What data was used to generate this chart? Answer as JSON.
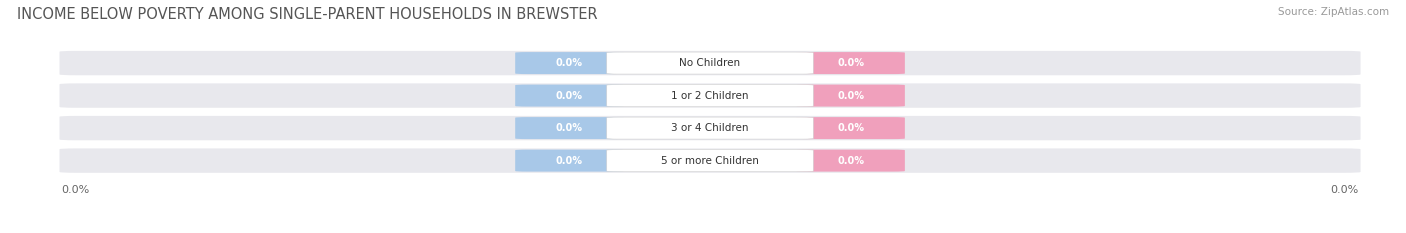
{
  "title": "INCOME BELOW POVERTY AMONG SINGLE-PARENT HOUSEHOLDS IN BREWSTER",
  "source": "Source: ZipAtlas.com",
  "categories": [
    "No Children",
    "1 or 2 Children",
    "3 or 4 Children",
    "5 or more Children"
  ],
  "father_values": [
    0.0,
    0.0,
    0.0,
    0.0
  ],
  "mother_values": [
    0.0,
    0.0,
    0.0,
    0.0
  ],
  "father_color": "#a8c8e8",
  "mother_color": "#f0a0bc",
  "bar_bg_color": "#e8e8ed",
  "bar_height": 0.7,
  "title_fontsize": 10.5,
  "source_fontsize": 7.5,
  "axis_label_fontsize": 8,
  "category_fontsize": 7.5,
  "value_label_fontsize": 7,
  "legend_fontsize": 8,
  "bg_color": "#ffffff",
  "xlim": [
    -1.0,
    1.0
  ],
  "ylim": [
    -0.65,
    3.65
  ]
}
